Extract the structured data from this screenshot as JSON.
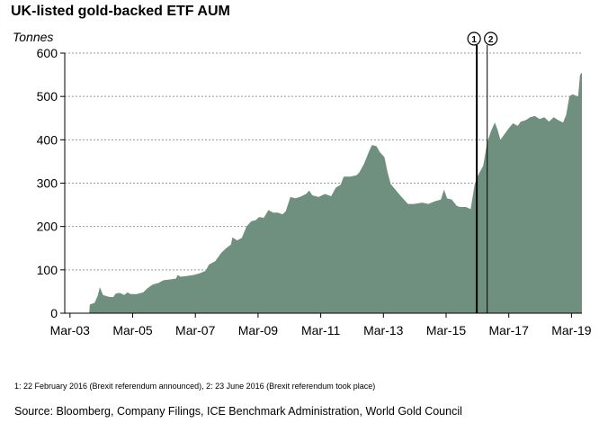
{
  "chart_data": {
    "type": "area",
    "title": "UK-listed gold-backed ETF AUM",
    "ylabel": "Tonnes",
    "xlabel": "",
    "ylim": [
      0,
      600
    ],
    "yticks": [
      0,
      100,
      200,
      300,
      400,
      500,
      600
    ],
    "xlim": [
      2003.0,
      2019.5
    ],
    "xticks": [
      {
        "label": "Mar-03",
        "x": 2003.167
      },
      {
        "label": "Mar-05",
        "x": 2005.167
      },
      {
        "label": "Mar-07",
        "x": 2007.167
      },
      {
        "label": "Mar-09",
        "x": 2009.167
      },
      {
        "label": "Mar-11",
        "x": 2011.167
      },
      {
        "label": "Mar-13",
        "x": 2013.167
      },
      {
        "label": "Mar-15",
        "x": 2015.167
      },
      {
        "label": "Mar-17",
        "x": 2017.167
      },
      {
        "label": "Mar-19",
        "x": 2019.167
      }
    ],
    "grid": "horizontal dashed",
    "fill_color": "#6f8f7f",
    "series": [
      {
        "name": "",
        "points": [
          [
            2003.0,
            0
          ],
          [
            2003.78,
            0
          ],
          [
            2003.8,
            20
          ],
          [
            2003.95,
            24
          ],
          [
            2004.05,
            40
          ],
          [
            2004.12,
            60
          ],
          [
            2004.22,
            42
          ],
          [
            2004.4,
            38
          ],
          [
            2004.55,
            37
          ],
          [
            2004.62,
            45
          ],
          [
            2004.75,
            47
          ],
          [
            2004.9,
            42
          ],
          [
            2005.0,
            48
          ],
          [
            2005.1,
            44
          ],
          [
            2005.3,
            44
          ],
          [
            2005.5,
            48
          ],
          [
            2005.65,
            58
          ],
          [
            2005.8,
            66
          ],
          [
            2006.0,
            70
          ],
          [
            2006.15,
            76
          ],
          [
            2006.4,
            78
          ],
          [
            2006.55,
            80
          ],
          [
            2006.6,
            88
          ],
          [
            2006.7,
            84
          ],
          [
            2006.9,
            86
          ],
          [
            2007.1,
            88
          ],
          [
            2007.3,
            92
          ],
          [
            2007.5,
            98
          ],
          [
            2007.6,
            112
          ],
          [
            2007.8,
            120
          ],
          [
            2008.0,
            140
          ],
          [
            2008.15,
            150
          ],
          [
            2008.3,
            158
          ],
          [
            2008.35,
            175
          ],
          [
            2008.5,
            168
          ],
          [
            2008.65,
            174
          ],
          [
            2008.8,
            200
          ],
          [
            2008.95,
            212
          ],
          [
            2009.1,
            215
          ],
          [
            2009.2,
            222
          ],
          [
            2009.35,
            220
          ],
          [
            2009.5,
            238
          ],
          [
            2009.65,
            232
          ],
          [
            2009.8,
            232
          ],
          [
            2009.95,
            228
          ],
          [
            2010.05,
            235
          ],
          [
            2010.2,
            268
          ],
          [
            2010.35,
            265
          ],
          [
            2010.5,
            268
          ],
          [
            2010.7,
            275
          ],
          [
            2010.8,
            283
          ],
          [
            2010.9,
            272
          ],
          [
            2011.1,
            268
          ],
          [
            2011.3,
            275
          ],
          [
            2011.5,
            270
          ],
          [
            2011.65,
            290
          ],
          [
            2011.8,
            296
          ],
          [
            2011.9,
            315
          ],
          [
            2012.1,
            315
          ],
          [
            2012.3,
            318
          ],
          [
            2012.4,
            325
          ],
          [
            2012.55,
            345
          ],
          [
            2012.7,
            372
          ],
          [
            2012.8,
            388
          ],
          [
            2012.95,
            385
          ],
          [
            2013.05,
            372
          ],
          [
            2013.2,
            360
          ],
          [
            2013.3,
            325
          ],
          [
            2013.4,
            298
          ],
          [
            2013.55,
            285
          ],
          [
            2013.7,
            272
          ],
          [
            2013.85,
            260
          ],
          [
            2013.95,
            252
          ],
          [
            2014.15,
            252
          ],
          [
            2014.4,
            255
          ],
          [
            2014.6,
            252
          ],
          [
            2014.8,
            258
          ],
          [
            2015.0,
            262
          ],
          [
            2015.1,
            285
          ],
          [
            2015.2,
            265
          ],
          [
            2015.35,
            262
          ],
          [
            2015.5,
            248
          ],
          [
            2015.6,
            245
          ],
          [
            2015.8,
            245
          ],
          [
            2015.95,
            240
          ],
          [
            2016.0,
            262
          ],
          [
            2016.08,
            298
          ],
          [
            2016.2,
            320
          ],
          [
            2016.35,
            340
          ],
          [
            2016.48,
            395
          ],
          [
            2016.6,
            420
          ],
          [
            2016.72,
            440
          ],
          [
            2016.8,
            425
          ],
          [
            2016.9,
            400
          ],
          [
            2017.0,
            410
          ],
          [
            2017.15,
            425
          ],
          [
            2017.3,
            438
          ],
          [
            2017.45,
            432
          ],
          [
            2017.55,
            442
          ],
          [
            2017.7,
            445
          ],
          [
            2017.85,
            452
          ],
          [
            2018.0,
            455
          ],
          [
            2018.15,
            448
          ],
          [
            2018.3,
            452
          ],
          [
            2018.45,
            442
          ],
          [
            2018.6,
            452
          ],
          [
            2018.75,
            445
          ],
          [
            2018.9,
            440
          ],
          [
            2019.0,
            458
          ],
          [
            2019.1,
            500
          ],
          [
            2019.2,
            505
          ],
          [
            2019.3,
            502
          ],
          [
            2019.38,
            500
          ],
          [
            2019.44,
            550
          ],
          [
            2019.5,
            555
          ]
        ]
      }
    ],
    "events": [
      {
        "marker": "1",
        "x": 2016.146
      },
      {
        "marker": "2",
        "x": 2016.478
      }
    ]
  },
  "footnote": "1: 22 February 2016 (Brexit referendum announced), 2: 23 June 2016 (Brexit referendum took place)",
  "source": "Source: Bloomberg, Company Filings, ICE Benchmark Administration, World Gold Council",
  "colors": {
    "area": "#6f8f7f",
    "grid": "#999999",
    "axis": "#000000"
  }
}
